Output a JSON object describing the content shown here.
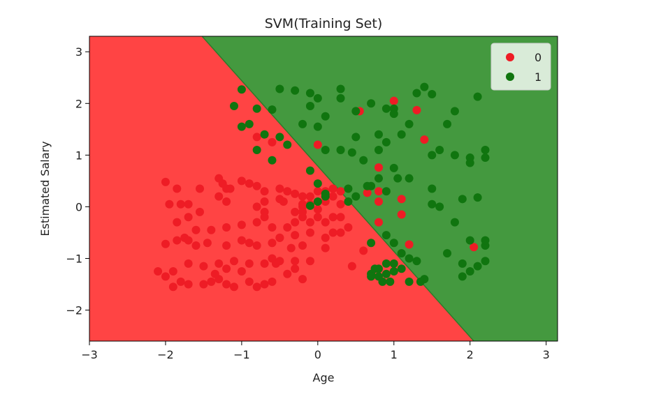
{
  "chart_data": {
    "type": "scatter",
    "title": "SVM(Training Set)",
    "xlabel": "Age",
    "ylabel": "Estimated Salary",
    "xlim": [
      -3,
      3.15
    ],
    "ylim": [
      -2.6,
      3.3
    ],
    "xticks": [
      -3,
      -2,
      -1,
      0,
      1,
      2,
      3
    ],
    "yticks": [
      -2,
      -1,
      0,
      1,
      2,
      3
    ],
    "xtick_labels": [
      "−3",
      "−2",
      "−1",
      "0",
      "1",
      "2",
      "3"
    ],
    "ytick_labels": [
      "−2",
      "−1",
      "0",
      "1",
      "2",
      "3"
    ],
    "grid": false,
    "legend_position": "top-right",
    "decision_boundary": {
      "description_points": [
        [
          -1.52,
          3.3
        ],
        [
          2.05,
          -2.6
        ]
      ],
      "region_colors": {
        "0": "#ff4444",
        "1": "#44993f"
      },
      "boundary_color": "#2f7a2a"
    },
    "series": [
      {
        "name": "0",
        "color": "#ee1c25",
        "points": [
          [
            -2.0,
            0.48
          ],
          [
            -1.85,
            0.35
          ],
          [
            -1.95,
            0.05
          ],
          [
            -1.8,
            0.05
          ],
          [
            -1.7,
            0.05
          ],
          [
            -1.55,
            0.35
          ],
          [
            -1.55,
            -0.1
          ],
          [
            -1.3,
            0.55
          ],
          [
            -1.25,
            0.45
          ],
          [
            -1.2,
            0.35
          ],
          [
            -1.15,
            0.35
          ],
          [
            -1.3,
            0.2
          ],
          [
            -1.2,
            0.1
          ],
          [
            -1.0,
            0.5
          ],
          [
            -0.9,
            0.45
          ],
          [
            -0.8,
            0.4
          ],
          [
            -0.7,
            0.3
          ],
          [
            -0.7,
            0.1
          ],
          [
            -0.8,
            0.0
          ],
          [
            -0.7,
            -0.1
          ],
          [
            -0.5,
            0.35
          ],
          [
            -0.45,
            0.1
          ],
          [
            -0.4,
            0.3
          ],
          [
            -0.3,
            0.25
          ],
          [
            -0.2,
            0.2
          ],
          [
            -0.1,
            0.2
          ],
          [
            0.0,
            0.3
          ],
          [
            0.1,
            0.3
          ],
          [
            0.2,
            0.35
          ],
          [
            0.3,
            0.3
          ],
          [
            0.2,
            0.2
          ],
          [
            -0.2,
            0.0
          ],
          [
            -0.3,
            -0.1
          ],
          [
            -0.2,
            -0.2
          ],
          [
            -0.1,
            -0.3
          ],
          [
            0.0,
            -0.2
          ],
          [
            0.1,
            -0.3
          ],
          [
            0.2,
            -0.2
          ],
          [
            0.3,
            -0.2
          ],
          [
            0.4,
            -0.4
          ],
          [
            0.3,
            -0.5
          ],
          [
            0.1,
            -0.6
          ],
          [
            -0.1,
            -0.5
          ],
          [
            -0.3,
            -0.55
          ],
          [
            -0.5,
            -0.6
          ],
          [
            -0.6,
            -0.4
          ],
          [
            -0.8,
            -0.3
          ],
          [
            -1.0,
            -0.35
          ],
          [
            -1.2,
            -0.4
          ],
          [
            -1.4,
            -0.45
          ],
          [
            -1.6,
            -0.45
          ],
          [
            -1.7,
            -0.2
          ],
          [
            -1.85,
            -0.3
          ],
          [
            -2.0,
            -0.72
          ],
          [
            -1.85,
            -0.65
          ],
          [
            -1.75,
            -0.6
          ],
          [
            -1.7,
            -0.65
          ],
          [
            -1.6,
            -0.75
          ],
          [
            -1.45,
            -0.7
          ],
          [
            -1.2,
            -0.75
          ],
          [
            -1.0,
            -0.65
          ],
          [
            -0.9,
            -0.7
          ],
          [
            -0.8,
            -0.75
          ],
          [
            -0.6,
            -0.7
          ],
          [
            -0.5,
            -0.6
          ],
          [
            -0.35,
            -0.8
          ],
          [
            -0.2,
            -0.75
          ],
          [
            -0.1,
            -1.05
          ],
          [
            0.1,
            -0.8
          ],
          [
            -0.3,
            -1.05
          ],
          [
            -0.5,
            -1.05
          ],
          [
            -0.7,
            -1.1
          ],
          [
            -0.9,
            -1.1
          ],
          [
            -1.1,
            -1.05
          ],
          [
            -1.3,
            -1.1
          ],
          [
            -1.5,
            -1.15
          ],
          [
            -1.7,
            -1.1
          ],
          [
            -1.9,
            -1.25
          ],
          [
            -2.0,
            -1.35
          ],
          [
            -2.1,
            -1.25
          ],
          [
            -1.9,
            -1.55
          ],
          [
            -1.8,
            -1.45
          ],
          [
            -1.7,
            -1.5
          ],
          [
            -1.5,
            -1.5
          ],
          [
            -1.4,
            -1.45
          ],
          [
            -1.3,
            -1.4
          ],
          [
            -1.2,
            -1.5
          ],
          [
            -1.1,
            -1.55
          ],
          [
            -0.9,
            -1.45
          ],
          [
            -0.8,
            -1.55
          ],
          [
            -0.7,
            -1.5
          ],
          [
            -0.6,
            -1.45
          ],
          [
            -0.4,
            -1.3
          ],
          [
            -0.55,
            -1.1
          ],
          [
            -0.3,
            -1.2
          ],
          [
            -1.0,
            -1.25
          ],
          [
            0.45,
            -1.15
          ],
          [
            0.6,
            -0.85
          ],
          [
            0.55,
            1.85
          ],
          [
            1.3,
            1.87
          ],
          [
            1.0,
            2.05
          ],
          [
            1.4,
            1.3
          ],
          [
            0.8,
            0.76
          ],
          [
            0.8,
            0.3
          ],
          [
            0.8,
            0.1
          ],
          [
            1.1,
            0.15
          ],
          [
            1.1,
            -0.15
          ],
          [
            0.8,
            -0.3
          ],
          [
            1.2,
            -0.73
          ],
          [
            2.05,
            -0.78
          ],
          [
            0.65,
            0.27
          ],
          [
            0.0,
            1.2
          ],
          [
            -0.6,
            1.25
          ],
          [
            -0.8,
            1.35
          ],
          [
            -0.2,
            0.05
          ],
          [
            0.3,
            0.05
          ],
          [
            -0.5,
            0.15
          ],
          [
            -0.2,
            -0.1
          ],
          [
            0.0,
            -0.05
          ],
          [
            -0.7,
            -0.2
          ],
          [
            -0.3,
            -0.3
          ],
          [
            -0.1,
            0.05
          ],
          [
            0.1,
            0.1
          ],
          [
            -0.4,
            -0.4
          ],
          [
            0.2,
            -0.5
          ],
          [
            -0.6,
            -1.0
          ],
          [
            -0.2,
            -1.4
          ],
          [
            -1.35,
            -1.3
          ],
          [
            -1.2,
            -1.2
          ]
        ]
      },
      {
        "name": "1",
        "color": "#10750f",
        "points": [
          [
            -1.1,
            1.95
          ],
          [
            -1.0,
            2.27
          ],
          [
            -0.8,
            1.9
          ],
          [
            -0.6,
            1.88
          ],
          [
            -0.5,
            2.28
          ],
          [
            -0.3,
            2.25
          ],
          [
            -0.1,
            2.2
          ],
          [
            0.0,
            2.1
          ],
          [
            0.3,
            2.28
          ],
          [
            0.3,
            2.1
          ],
          [
            0.5,
            1.85
          ],
          [
            0.7,
            2.0
          ],
          [
            0.9,
            1.9
          ],
          [
            1.0,
            1.9
          ],
          [
            1.0,
            1.8
          ],
          [
            1.3,
            2.2
          ],
          [
            1.4,
            2.32
          ],
          [
            1.5,
            2.18
          ],
          [
            1.8,
            1.85
          ],
          [
            2.1,
            2.13
          ],
          [
            -0.1,
            1.95
          ],
          [
            -0.9,
            1.6
          ],
          [
            -1.0,
            1.55
          ],
          [
            -0.7,
            1.4
          ],
          [
            -0.5,
            1.35
          ],
          [
            -0.4,
            1.2
          ],
          [
            -0.2,
            1.6
          ],
          [
            0.0,
            1.55
          ],
          [
            0.1,
            1.75
          ],
          [
            0.5,
            1.35
          ],
          [
            0.8,
            1.4
          ],
          [
            0.9,
            1.25
          ],
          [
            1.1,
            1.4
          ],
          [
            1.2,
            1.6
          ],
          [
            1.5,
            1.0
          ],
          [
            1.6,
            1.1
          ],
          [
            1.7,
            1.6
          ],
          [
            1.8,
            1.0
          ],
          [
            2.0,
            0.95
          ],
          [
            2.2,
            1.1
          ],
          [
            2.2,
            0.95
          ],
          [
            -0.8,
            1.1
          ],
          [
            -0.6,
            0.9
          ],
          [
            -0.1,
            0.7
          ],
          [
            0.1,
            1.1
          ],
          [
            0.3,
            1.1
          ],
          [
            0.6,
            0.9
          ],
          [
            0.8,
            1.1
          ],
          [
            1.0,
            0.75
          ],
          [
            1.2,
            0.55
          ],
          [
            1.5,
            0.35
          ],
          [
            1.9,
            0.15
          ],
          [
            2.1,
            0.18
          ],
          [
            2.0,
            0.85
          ],
          [
            0.4,
            0.35
          ],
          [
            0.5,
            0.2
          ],
          [
            0.7,
            0.4
          ],
          [
            0.8,
            0.55
          ],
          [
            0.9,
            0.3
          ],
          [
            1.5,
            0.05
          ],
          [
            1.6,
            0.0
          ],
          [
            1.8,
            -0.3
          ],
          [
            0.0,
            0.45
          ],
          [
            0.1,
            0.2
          ],
          [
            0.4,
            0.1
          ],
          [
            0.9,
            -0.55
          ],
          [
            1.0,
            -0.7
          ],
          [
            0.7,
            -0.7
          ],
          [
            1.1,
            -0.9
          ],
          [
            1.2,
            -1.0
          ],
          [
            1.3,
            -1.05
          ],
          [
            1.0,
            -1.1
          ],
          [
            0.9,
            -1.1
          ],
          [
            0.8,
            -1.2
          ],
          [
            0.7,
            -1.3
          ],
          [
            0.8,
            -1.35
          ],
          [
            0.9,
            -1.3
          ],
          [
            1.0,
            -1.25
          ],
          [
            1.1,
            -1.2
          ],
          [
            0.85,
            -1.45
          ],
          [
            0.95,
            -1.45
          ],
          [
            1.2,
            -1.45
          ],
          [
            1.4,
            -1.4
          ],
          [
            1.35,
            -1.45
          ],
          [
            1.7,
            -0.9
          ],
          [
            2.0,
            -0.65
          ],
          [
            1.9,
            -1.1
          ],
          [
            2.0,
            -1.25
          ],
          [
            2.1,
            -1.15
          ],
          [
            2.2,
            -1.05
          ],
          [
            2.2,
            -0.75
          ],
          [
            2.2,
            -0.65
          ],
          [
            1.9,
            -1.35
          ],
          [
            0.7,
            -1.35
          ],
          [
            0.75,
            -1.2
          ],
          [
            0.0,
            0.1
          ],
          [
            0.1,
            0.25
          ],
          [
            -0.1,
            0.02
          ],
          [
            0.45,
            1.05
          ],
          [
            0.65,
            0.4
          ],
          [
            1.05,
            0.55
          ]
        ]
      }
    ]
  }
}
